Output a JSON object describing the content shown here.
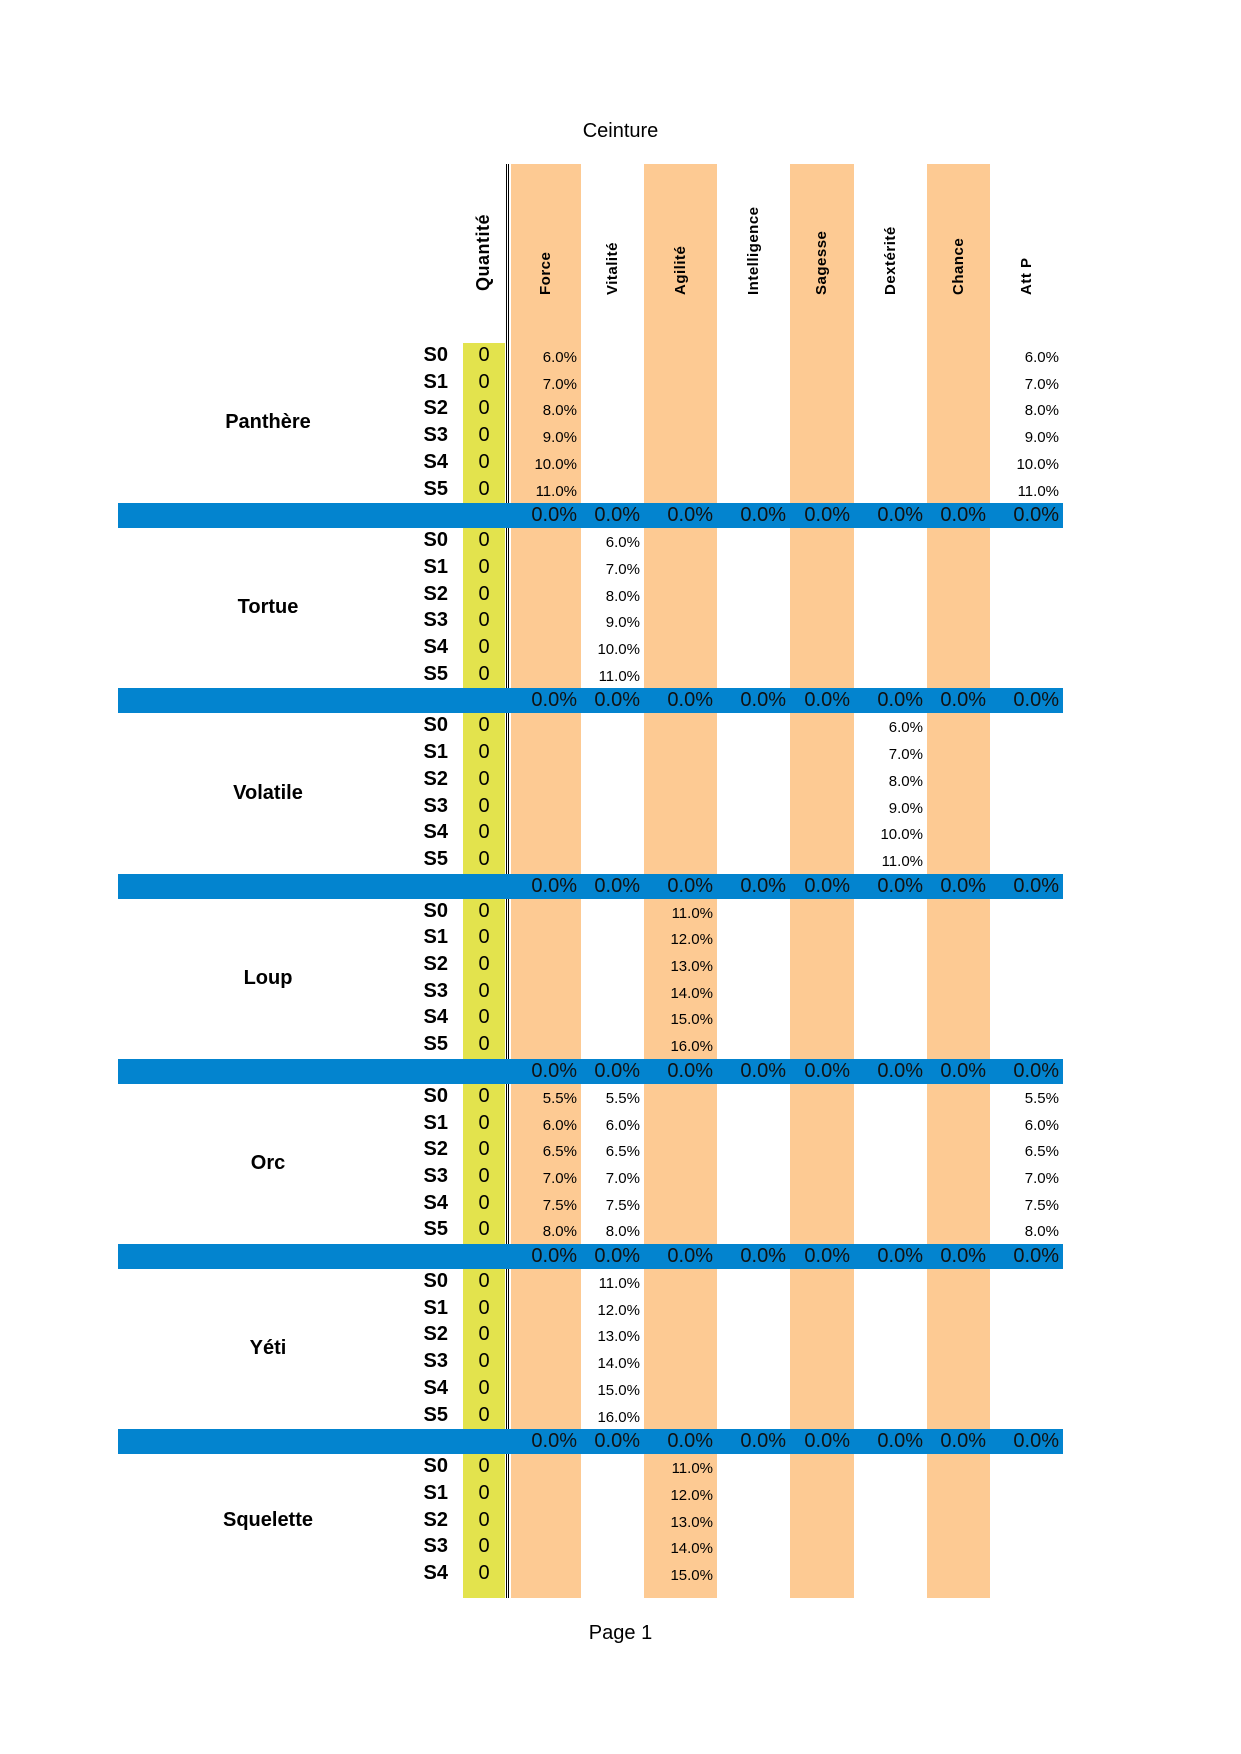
{
  "title": "Ceinture",
  "footer": "Page 1",
  "colors": {
    "orange": "#fdca93",
    "yellow": "#e3e34d",
    "blue": "#0384cf"
  },
  "quantity_header": "Quantité",
  "columns": [
    "Force",
    "Vitalité",
    "Agilité",
    "Intelligence",
    "Sagesse",
    "Dextérité",
    "Chance",
    "Att P"
  ],
  "blocks": [
    {
      "name": "Panthère",
      "rows": [
        {
          "label": "S0",
          "qty": "0",
          "values": [
            "6.0%",
            "",
            "",
            "",
            "",
            "",
            "",
            "6.0%"
          ]
        },
        {
          "label": "S1",
          "qty": "0",
          "values": [
            "7.0%",
            "",
            "",
            "",
            "",
            "",
            "",
            "7.0%"
          ]
        },
        {
          "label": "S2",
          "qty": "0",
          "values": [
            "8.0%",
            "",
            "",
            "",
            "",
            "",
            "",
            "8.0%"
          ]
        },
        {
          "label": "S3",
          "qty": "0",
          "values": [
            "9.0%",
            "",
            "",
            "",
            "",
            "",
            "",
            "9.0%"
          ]
        },
        {
          "label": "S4",
          "qty": "0",
          "values": [
            "10.0%",
            "",
            "",
            "",
            "",
            "",
            "",
            "10.0%"
          ]
        },
        {
          "label": "S5",
          "qty": "0",
          "values": [
            "11.0%",
            "",
            "",
            "",
            "",
            "",
            "",
            "11.0%"
          ]
        }
      ],
      "totals": [
        "0.0%",
        "0.0%",
        "0.0%",
        "0.0%",
        "0.0%",
        "0.0%",
        "0.0%",
        "0.0%"
      ]
    },
    {
      "name": "Tortue",
      "rows": [
        {
          "label": "S0",
          "qty": "0",
          "values": [
            "",
            "6.0%",
            "",
            "",
            "",
            "",
            "",
            ""
          ]
        },
        {
          "label": "S1",
          "qty": "0",
          "values": [
            "",
            "7.0%",
            "",
            "",
            "",
            "",
            "",
            ""
          ]
        },
        {
          "label": "S2",
          "qty": "0",
          "values": [
            "",
            "8.0%",
            "",
            "",
            "",
            "",
            "",
            ""
          ]
        },
        {
          "label": "S3",
          "qty": "0",
          "values": [
            "",
            "9.0%",
            "",
            "",
            "",
            "",
            "",
            ""
          ]
        },
        {
          "label": "S4",
          "qty": "0",
          "values": [
            "",
            "10.0%",
            "",
            "",
            "",
            "",
            "",
            ""
          ]
        },
        {
          "label": "S5",
          "qty": "0",
          "values": [
            "",
            "11.0%",
            "",
            "",
            "",
            "",
            "",
            ""
          ]
        }
      ],
      "totals": [
        "0.0%",
        "0.0%",
        "0.0%",
        "0.0%",
        "0.0%",
        "0.0%",
        "0.0%",
        "0.0%"
      ]
    },
    {
      "name": "Volatile",
      "rows": [
        {
          "label": "S0",
          "qty": "0",
          "values": [
            "",
            "",
            "",
            "",
            "",
            "6.0%",
            "",
            ""
          ]
        },
        {
          "label": "S1",
          "qty": "0",
          "values": [
            "",
            "",
            "",
            "",
            "",
            "7.0%",
            "",
            ""
          ]
        },
        {
          "label": "S2",
          "qty": "0",
          "values": [
            "",
            "",
            "",
            "",
            "",
            "8.0%",
            "",
            ""
          ]
        },
        {
          "label": "S3",
          "qty": "0",
          "values": [
            "",
            "",
            "",
            "",
            "",
            "9.0%",
            "",
            ""
          ]
        },
        {
          "label": "S4",
          "qty": "0",
          "values": [
            "",
            "",
            "",
            "",
            "",
            "10.0%",
            "",
            ""
          ]
        },
        {
          "label": "S5",
          "qty": "0",
          "values": [
            "",
            "",
            "",
            "",
            "",
            "11.0%",
            "",
            ""
          ]
        }
      ],
      "totals": [
        "0.0%",
        "0.0%",
        "0.0%",
        "0.0%",
        "0.0%",
        "0.0%",
        "0.0%",
        "0.0%"
      ]
    },
    {
      "name": "Loup",
      "rows": [
        {
          "label": "S0",
          "qty": "0",
          "values": [
            "",
            "",
            "11.0%",
            "",
            "",
            "",
            "",
            ""
          ]
        },
        {
          "label": "S1",
          "qty": "0",
          "values": [
            "",
            "",
            "12.0%",
            "",
            "",
            "",
            "",
            ""
          ]
        },
        {
          "label": "S2",
          "qty": "0",
          "values": [
            "",
            "",
            "13.0%",
            "",
            "",
            "",
            "",
            ""
          ]
        },
        {
          "label": "S3",
          "qty": "0",
          "values": [
            "",
            "",
            "14.0%",
            "",
            "",
            "",
            "",
            ""
          ]
        },
        {
          "label": "S4",
          "qty": "0",
          "values": [
            "",
            "",
            "15.0%",
            "",
            "",
            "",
            "",
            ""
          ]
        },
        {
          "label": "S5",
          "qty": "0",
          "values": [
            "",
            "",
            "16.0%",
            "",
            "",
            "",
            "",
            ""
          ]
        }
      ],
      "totals": [
        "0.0%",
        "0.0%",
        "0.0%",
        "0.0%",
        "0.0%",
        "0.0%",
        "0.0%",
        "0.0%"
      ]
    },
    {
      "name": "Orc",
      "rows": [
        {
          "label": "S0",
          "qty": "0",
          "values": [
            "5.5%",
            "5.5%",
            "",
            "",
            "",
            "",
            "",
            "5.5%"
          ]
        },
        {
          "label": "S1",
          "qty": "0",
          "values": [
            "6.0%",
            "6.0%",
            "",
            "",
            "",
            "",
            "",
            "6.0%"
          ]
        },
        {
          "label": "S2",
          "qty": "0",
          "values": [
            "6.5%",
            "6.5%",
            "",
            "",
            "",
            "",
            "",
            "6.5%"
          ]
        },
        {
          "label": "S3",
          "qty": "0",
          "values": [
            "7.0%",
            "7.0%",
            "",
            "",
            "",
            "",
            "",
            "7.0%"
          ]
        },
        {
          "label": "S4",
          "qty": "0",
          "values": [
            "7.5%",
            "7.5%",
            "",
            "",
            "",
            "",
            "",
            "7.5%"
          ]
        },
        {
          "label": "S5",
          "qty": "0",
          "values": [
            "8.0%",
            "8.0%",
            "",
            "",
            "",
            "",
            "",
            "8.0%"
          ]
        }
      ],
      "totals": [
        "0.0%",
        "0.0%",
        "0.0%",
        "0.0%",
        "0.0%",
        "0.0%",
        "0.0%",
        "0.0%"
      ]
    },
    {
      "name": "Yéti",
      "rows": [
        {
          "label": "S0",
          "qty": "0",
          "values": [
            "",
            "11.0%",
            "",
            "",
            "",
            "",
            "",
            ""
          ]
        },
        {
          "label": "S1",
          "qty": "0",
          "values": [
            "",
            "12.0%",
            "",
            "",
            "",
            "",
            "",
            ""
          ]
        },
        {
          "label": "S2",
          "qty": "0",
          "values": [
            "",
            "13.0%",
            "",
            "",
            "",
            "",
            "",
            ""
          ]
        },
        {
          "label": "S3",
          "qty": "0",
          "values": [
            "",
            "14.0%",
            "",
            "",
            "",
            "",
            "",
            ""
          ]
        },
        {
          "label": "S4",
          "qty": "0",
          "values": [
            "",
            "15.0%",
            "",
            "",
            "",
            "",
            "",
            ""
          ]
        },
        {
          "label": "S5",
          "qty": "0",
          "values": [
            "",
            "16.0%",
            "",
            "",
            "",
            "",
            "",
            ""
          ]
        }
      ],
      "totals": [
        "0.0%",
        "0.0%",
        "0.0%",
        "0.0%",
        "0.0%",
        "0.0%",
        "0.0%",
        "0.0%"
      ]
    },
    {
      "name": "Squelette",
      "rows": [
        {
          "label": "S0",
          "qty": "0",
          "values": [
            "",
            "",
            "11.0%",
            "",
            "",
            "",
            "",
            ""
          ]
        },
        {
          "label": "S1",
          "qty": "0",
          "values": [
            "",
            "",
            "12.0%",
            "",
            "",
            "",
            "",
            ""
          ]
        },
        {
          "label": "S2",
          "qty": "0",
          "values": [
            "",
            "",
            "13.0%",
            "",
            "",
            "",
            "",
            ""
          ]
        },
        {
          "label": "S3",
          "qty": "0",
          "values": [
            "",
            "",
            "14.0%",
            "",
            "",
            "",
            "",
            ""
          ]
        },
        {
          "label": "S4",
          "qty": "0",
          "values": [
            "",
            "",
            "15.0%",
            "",
            "",
            "",
            "",
            ""
          ]
        }
      ]
    }
  ]
}
